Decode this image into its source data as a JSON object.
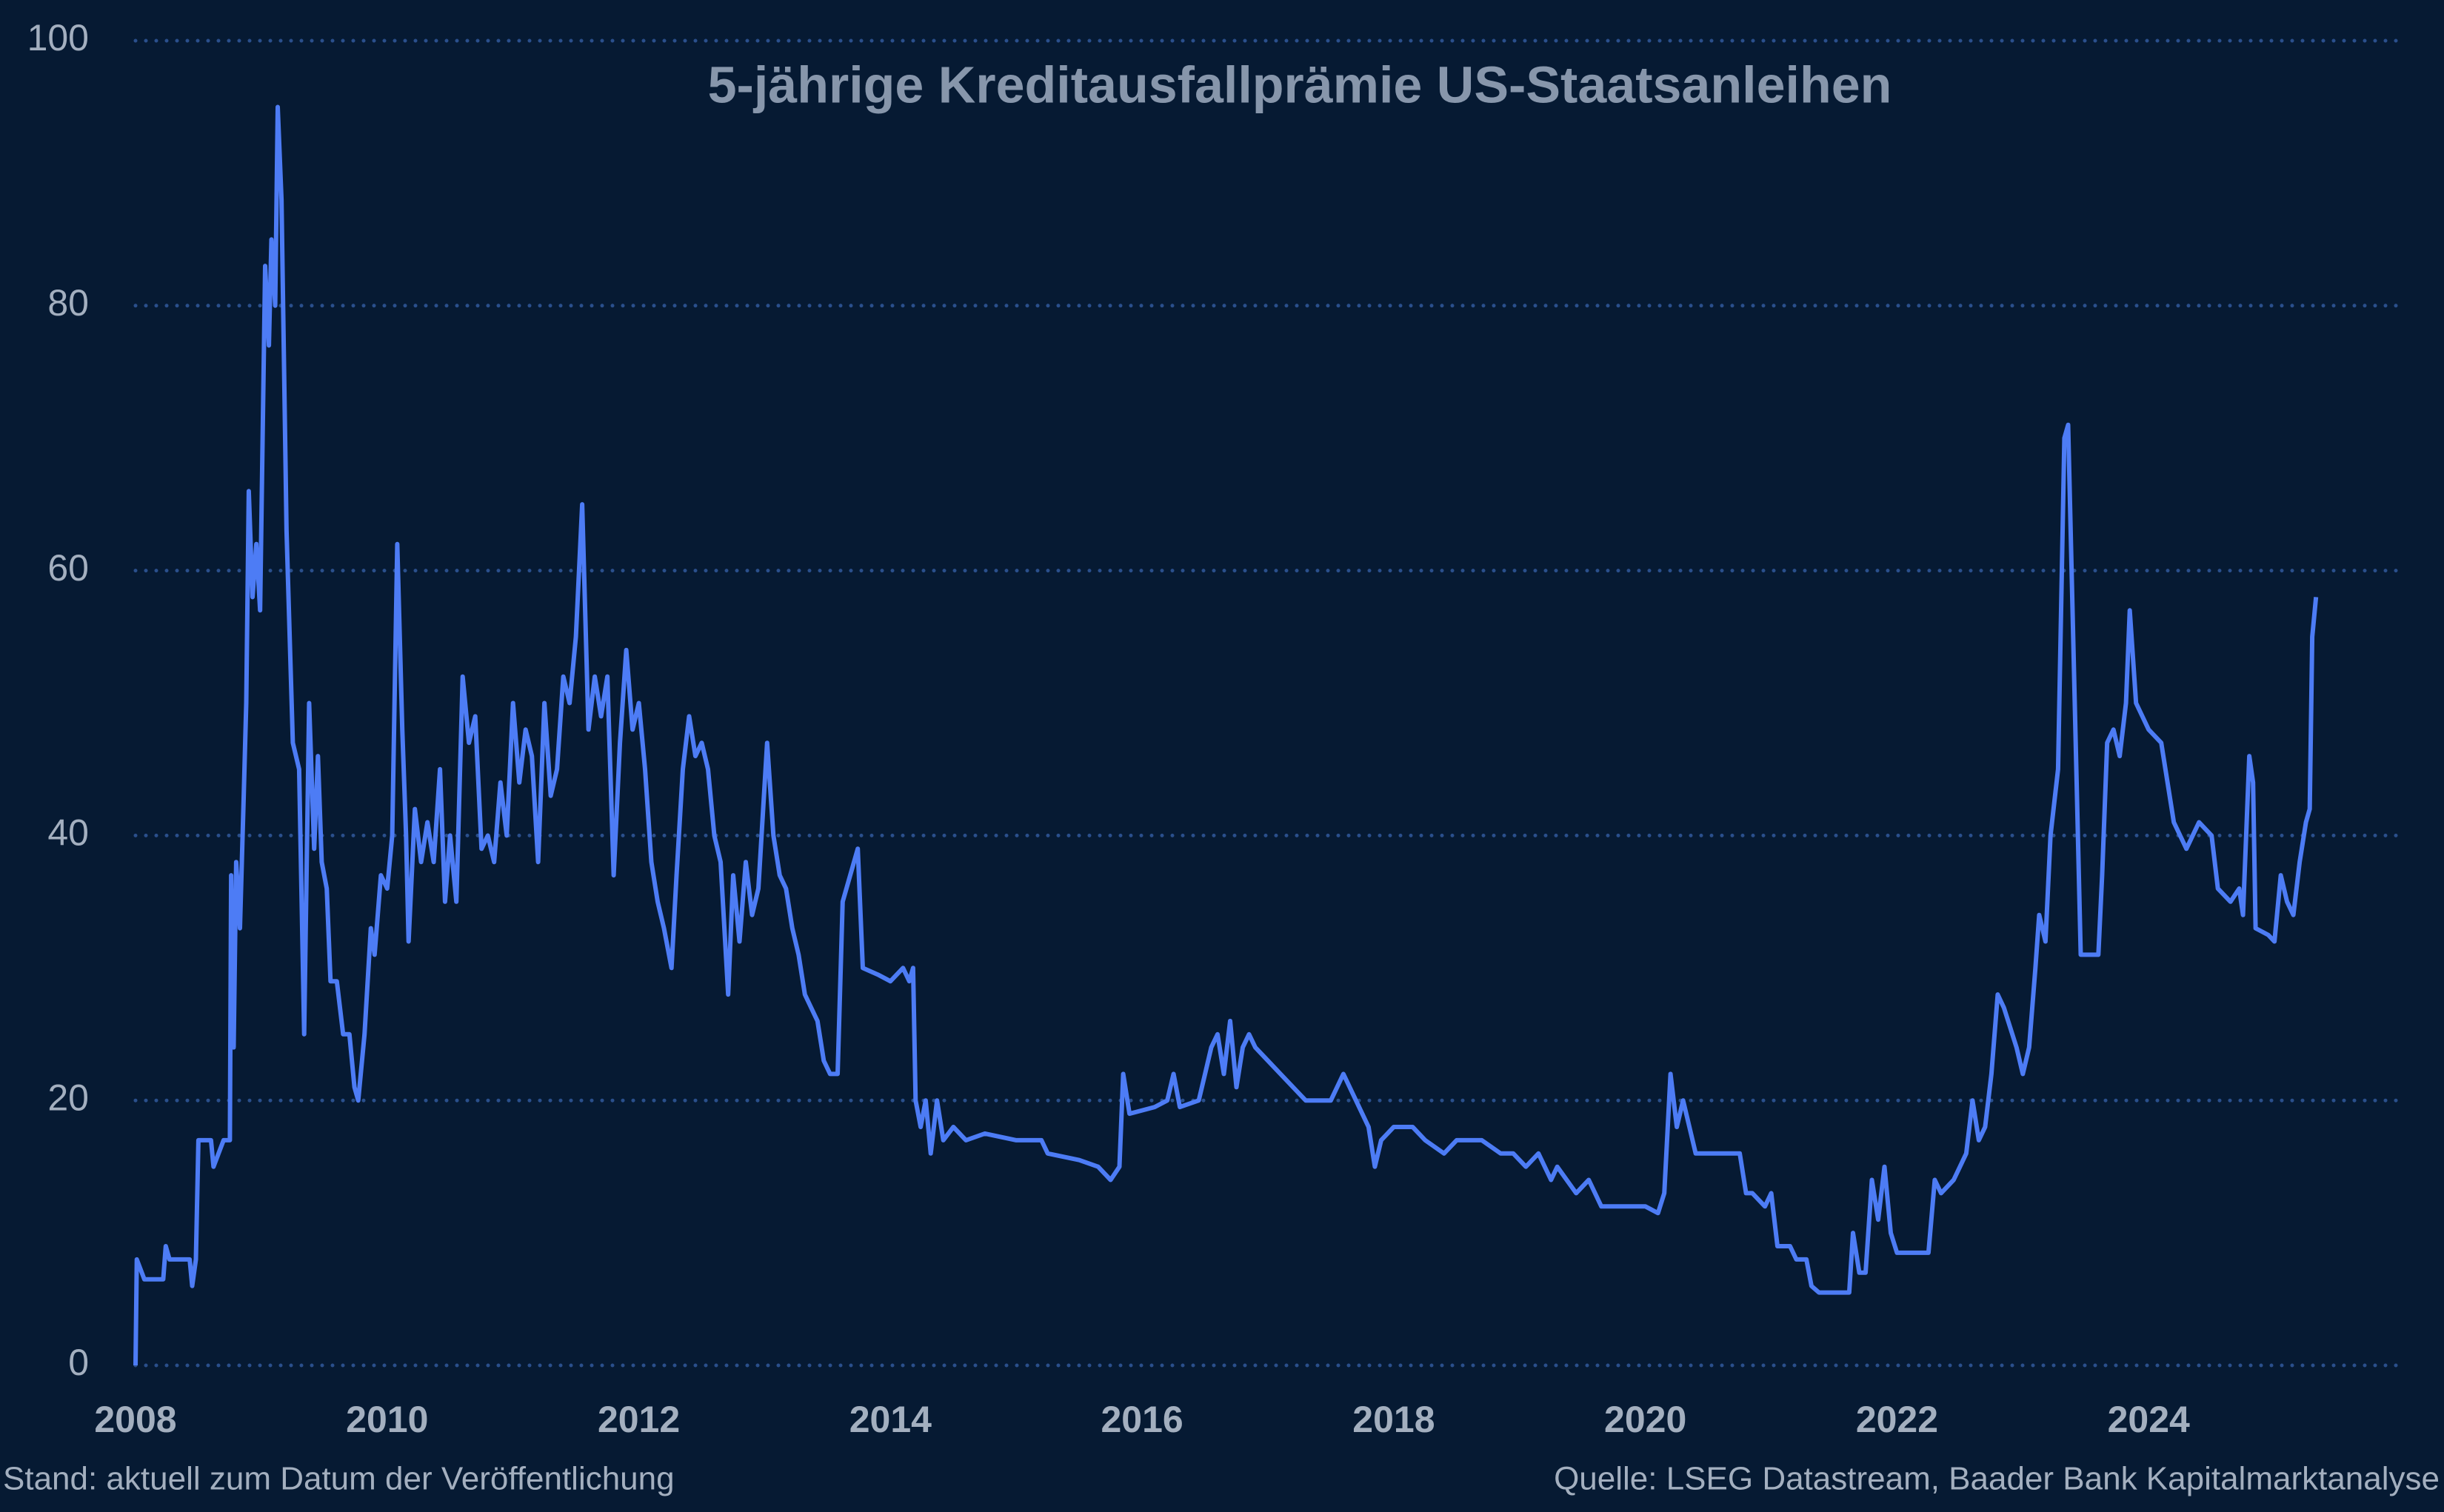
{
  "chart_data": {
    "type": "line",
    "title": "5-jährige Kreditausfallprämie US-Staatsanleihen",
    "note_left": "Stand: aktuell zum Datum der Veröffentlichung",
    "note_right": "Quelle: LSEG Datastream, Baader Bank Kapitalmarktanalyse",
    "color": "#4d7cf5",
    "grid": true,
    "xlim": [
      2008,
      2026
    ],
    "xticks": [
      2008,
      2010,
      2012,
      2014,
      2016,
      2018,
      2020,
      2022,
      2024
    ],
    "ylim": [
      0,
      100
    ],
    "yticks": [
      0,
      20,
      40,
      60,
      80,
      100
    ],
    "x": [
      2008.0,
      2008.01,
      2008.07,
      2008.22,
      2008.24,
      2008.27,
      2008.43,
      2008.45,
      2008.48,
      2008.5,
      2008.6,
      2008.62,
      2008.7,
      2008.75,
      2008.76,
      2008.78,
      2008.8,
      2008.83,
      2008.86,
      2008.88,
      2008.9,
      2008.93,
      2008.96,
      2008.99,
      2009.03,
      2009.06,
      2009.08,
      2009.11,
      2009.13,
      2009.16,
      2009.2,
      2009.25,
      2009.3,
      2009.34,
      2009.38,
      2009.42,
      2009.45,
      2009.48,
      2009.52,
      2009.55,
      2009.6,
      2009.65,
      2009.7,
      2009.74,
      2009.77,
      2009.82,
      2009.87,
      2009.9,
      2009.95,
      2010.0,
      2010.04,
      2010.08,
      2010.12,
      2010.15,
      2010.17,
      2010.22,
      2010.27,
      2010.32,
      2010.37,
      2010.42,
      2010.46,
      2010.5,
      2010.55,
      2010.6,
      2010.65,
      2010.7,
      2010.75,
      2010.8,
      2010.85,
      2010.9,
      2010.95,
      2011.0,
      2011.05,
      2011.1,
      2011.15,
      2011.2,
      2011.25,
      2011.3,
      2011.35,
      2011.4,
      2011.45,
      2011.5,
      2011.55,
      2011.6,
      2011.65,
      2011.7,
      2011.75,
      2011.8,
      2011.85,
      2011.9,
      2011.95,
      2012.0,
      2012.05,
      2012.1,
      2012.15,
      2012.2,
      2012.26,
      2012.3,
      2012.35,
      2012.4,
      2012.45,
      2012.5,
      2012.55,
      2012.6,
      2012.65,
      2012.71,
      2012.75,
      2012.8,
      2012.85,
      2012.9,
      2012.95,
      2013.02,
      2013.07,
      2013.12,
      2013.17,
      2013.22,
      2013.27,
      2013.32,
      2013.37,
      2013.42,
      2013.47,
      2013.52,
      2013.58,
      2013.62,
      2013.74,
      2013.78,
      2013.9,
      2014.0,
      2014.1,
      2014.15,
      2014.18,
      2014.2,
      2014.24,
      2014.28,
      2014.32,
      2014.37,
      2014.42,
      2014.5,
      2014.6,
      2014.75,
      2015.0,
      2015.2,
      2015.25,
      2015.5,
      2015.65,
      2015.75,
      2015.82,
      2015.85,
      2015.9,
      2016.1,
      2016.2,
      2016.25,
      2016.3,
      2016.45,
      2016.5,
      2016.55,
      2016.6,
      2016.65,
      2016.7,
      2016.75,
      2016.8,
      2016.85,
      2016.9,
      2017.0,
      2017.1,
      2017.2,
      2017.3,
      2017.5,
      2017.55,
      2017.6,
      2017.7,
      2017.8,
      2017.85,
      2017.9,
      2018.0,
      2018.15,
      2018.25,
      2018.4,
      2018.5,
      2018.7,
      2018.85,
      2018.95,
      2019.05,
      2019.15,
      2019.25,
      2019.3,
      2019.45,
      2019.55,
      2019.65,
      2019.85,
      2020.0,
      2020.1,
      2020.15,
      2020.2,
      2020.25,
      2020.3,
      2020.4,
      2020.6,
      2020.75,
      2020.8,
      2020.85,
      2020.95,
      2021.0,
      2021.05,
      2021.15,
      2021.2,
      2021.28,
      2021.32,
      2021.38,
      2021.55,
      2021.62,
      2021.65,
      2021.7,
      2021.75,
      2021.8,
      2021.85,
      2021.9,
      2021.95,
      2022.0,
      2022.25,
      2022.3,
      2022.35,
      2022.45,
      2022.5,
      2022.55,
      2022.6,
      2022.65,
      2022.7,
      2022.75,
      2022.8,
      2022.85,
      2022.95,
      2023.0,
      2023.05,
      2023.1,
      2023.13,
      2023.18,
      2023.22,
      2023.28,
      2023.33,
      2023.36,
      2023.4,
      2023.46,
      2023.6,
      2023.63,
      2023.67,
      2023.72,
      2023.77,
      2023.82,
      2023.85,
      2023.9,
      2024.0,
      2024.1,
      2024.2,
      2024.3,
      2024.4,
      2024.5,
      2024.55,
      2024.65,
      2024.72,
      2024.75,
      2024.8,
      2024.83,
      2024.85,
      2024.95,
      2025.0,
      2025.05,
      2025.1,
      2025.15,
      2025.2,
      2025.25,
      2025.28,
      2025.3,
      2025.33
    ],
    "values": [
      0,
      8,
      6.5,
      6.5,
      9,
      8,
      8,
      6,
      8,
      17,
      17,
      15,
      17,
      17,
      37,
      24,
      38,
      33,
      43,
      50,
      66,
      58,
      62,
      57,
      83,
      77,
      85,
      80,
      95,
      88,
      63,
      47,
      45,
      25,
      50,
      39,
      46,
      38,
      36,
      29,
      29,
      25,
      25,
      21,
      20,
      25,
      33,
      31,
      37,
      36,
      40,
      62,
      48,
      40,
      32,
      42,
      38,
      41,
      38,
      45,
      35,
      40,
      35,
      52,
      47,
      49,
      39,
      40,
      38,
      44,
      40,
      50,
      44,
      48,
      46,
      38,
      50,
      43,
      45,
      52,
      50,
      55,
      65,
      48,
      52,
      49,
      52,
      37,
      47,
      54,
      48,
      50,
      45,
      38,
      35,
      33,
      30,
      37,
      45,
      49,
      46,
      47,
      45,
      40,
      38,
      28,
      37,
      32,
      38,
      34,
      36,
      47,
      40,
      37,
      36,
      33,
      31,
      28,
      27,
      26,
      23,
      22,
      22,
      35,
      39,
      30,
      29.5,
      29,
      30,
      29,
      30,
      20,
      18,
      20,
      16,
      20,
      17,
      18,
      17,
      17.5,
      17,
      17,
      16,
      15.5,
      15,
      14,
      15,
      22,
      19,
      19.5,
      20,
      22,
      19.5,
      20,
      22,
      24,
      25,
      22,
      26,
      21,
      24,
      25,
      24,
      23,
      22,
      21,
      20,
      20,
      21,
      22,
      20,
      18,
      15,
      17,
      18,
      18,
      17,
      16,
      17,
      17,
      16,
      16,
      15,
      16,
      14,
      15,
      13,
      14,
      12,
      12,
      12,
      11.5,
      13,
      22,
      18,
      20,
      16,
      16,
      16,
      13,
      13,
      12,
      13,
      9,
      9,
      8,
      8,
      6,
      5.5,
      5.5,
      5.5,
      10,
      7,
      7,
      14,
      11,
      15,
      10,
      8.5,
      8.5,
      14,
      13,
      14,
      15,
      16,
      20,
      17,
      18,
      22,
      28,
      27,
      24,
      22,
      24,
      30,
      34,
      32,
      40,
      45,
      70,
      71,
      55,
      31,
      31,
      37,
      47,
      48,
      46,
      50,
      57,
      50,
      48,
      47,
      41,
      39,
      41,
      40,
      36,
      35,
      36,
      34,
      46,
      44,
      33,
      32.5,
      32,
      37,
      35,
      34,
      38,
      41,
      42,
      55,
      58
    ]
  }
}
